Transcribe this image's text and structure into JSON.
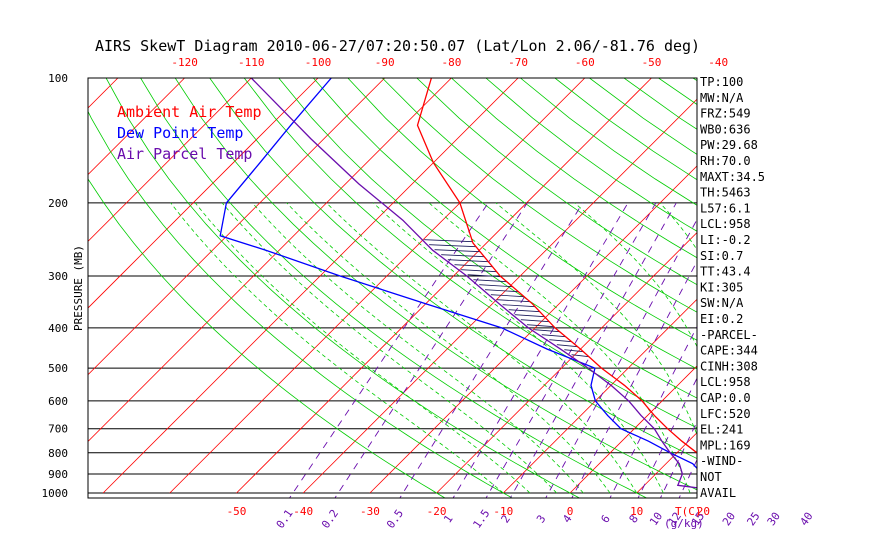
{
  "chart_data": {
    "type": "skewt",
    "title": "AIRS SkewT Diagram 2010-06-27/07:20:50.07 (Lat/Lon 2.06/-81.76 deg)",
    "ylabel": "PRESSURE (MB)",
    "xlabel_unit": "T(C)",
    "mixing_unit": "(g/kg)",
    "pressure_ticks": [
      100,
      200,
      300,
      400,
      500,
      600,
      700,
      800,
      900,
      1000
    ],
    "top_temp_ticks": [
      -120,
      -110,
      -100,
      -90,
      -80,
      -70,
      -60,
      -50,
      -40
    ],
    "bottom_temp_ticks": [
      -50,
      -40,
      -30,
      -20,
      -10,
      0,
      10,
      20
    ],
    "mixing_ratio_labels": [
      "0.1",
      "0.2",
      "0.5",
      "1",
      "1.5",
      "2",
      "3",
      "4",
      "6",
      "8",
      "10",
      "12",
      "15",
      "20",
      "25",
      "30",
      "40"
    ],
    "legend": [
      {
        "label": "Ambient Air Temp",
        "color": "#ff0000"
      },
      {
        "label": "Dew Point Temp",
        "color": "#0000ff"
      },
      {
        "label": "Air Parcel Temp",
        "color": "#6a0dad"
      }
    ],
    "profiles": {
      "ambient_temp": {
        "color": "#ff0000",
        "points": [
          [
            100,
            -83
          ],
          [
            130,
            -78
          ],
          [
            160,
            -70
          ],
          [
            200,
            -60
          ],
          [
            250,
            -52
          ],
          [
            300,
            -43
          ],
          [
            350,
            -34
          ],
          [
            400,
            -27
          ],
          [
            450,
            -20
          ],
          [
            500,
            -14
          ],
          [
            550,
            -8
          ],
          [
            600,
            -3
          ],
          [
            650,
            1
          ],
          [
            700,
            5
          ],
          [
            750,
            9
          ],
          [
            800,
            13
          ],
          [
            850,
            17
          ],
          [
            900,
            21
          ],
          [
            950,
            24
          ],
          [
            1000,
            25
          ]
        ]
      },
      "dew_point": {
        "color": "#0000ff",
        "points": [
          [
            100,
            -98
          ],
          [
            130,
            -97
          ],
          [
            160,
            -96
          ],
          [
            200,
            -95
          ],
          [
            240,
            -91
          ],
          [
            260,
            -82
          ],
          [
            300,
            -67
          ],
          [
            350,
            -50
          ],
          [
            400,
            -35
          ],
          [
            450,
            -25
          ],
          [
            500,
            -15
          ],
          [
            550,
            -13
          ],
          [
            600,
            -10
          ],
          [
            650,
            -6
          ],
          [
            700,
            -2
          ],
          [
            750,
            4
          ],
          [
            800,
            9
          ],
          [
            850,
            14
          ],
          [
            900,
            17
          ],
          [
            950,
            19
          ],
          [
            1000,
            21
          ]
        ]
      },
      "parcel": {
        "color": "#6a0dad",
        "points": [
          [
            100,
            -110
          ],
          [
            140,
            -92
          ],
          [
            180,
            -78
          ],
          [
            220,
            -66
          ],
          [
            260,
            -57
          ],
          [
            300,
            -48
          ],
          [
            350,
            -39
          ],
          [
            400,
            -31
          ],
          [
            450,
            -23
          ],
          [
            500,
            -16
          ],
          [
            550,
            -10
          ],
          [
            600,
            -5
          ],
          [
            650,
            -1
          ],
          [
            700,
            3
          ],
          [
            750,
            6
          ],
          [
            800,
            9
          ],
          [
            850,
            12
          ],
          [
            900,
            14
          ],
          [
            958,
            15
          ],
          [
            1000,
            25
          ]
        ]
      }
    },
    "hatched_region": {
      "p_top": 248,
      "p_bottom": 470
    }
  },
  "indices": [
    "TP:100",
    "MW:N/A",
    "FRZ:549",
    "WB0:636",
    "PW:29.68",
    "RH:70.0",
    "MAXT:34.5",
    "TH:5463",
    "L57:6.1",
    "LCL:958",
    "LI:-0.2",
    "SI:0.7",
    "TT:43.4",
    "KI:305",
    "SW:N/A",
    "EI:0.2",
    "-PARCEL-",
    "CAPE:344",
    "CINH:308",
    "LCL:958",
    "CAP:0.0",
    "LFC:520",
    "EL:241",
    "MPL:169",
    "-WIND-",
    "NOT",
    "AVAIL"
  ],
  "colors": {
    "isotherm": "#ff0000",
    "dry_adiabat": "#00cc00",
    "moist_adiabat": "#00cc00",
    "mixing_ratio": "#6a0dad",
    "isobar": "#000000"
  }
}
